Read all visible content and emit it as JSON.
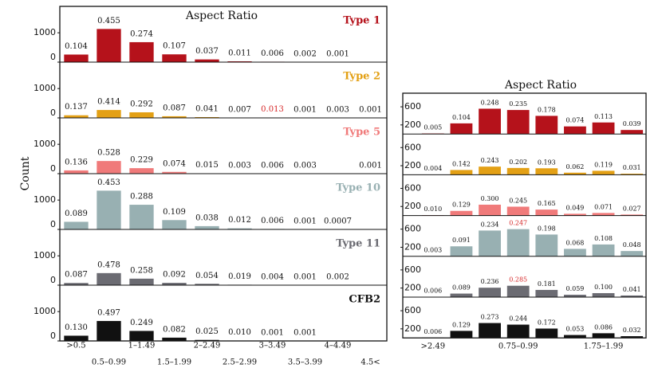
{
  "chart_data": [
    {
      "type": "bar",
      "title": "Aspect Ratio",
      "y_label": "Count",
      "categories": [
        ">0.5",
        "0.5–0.99",
        "1–1.49",
        "1.5–1.99",
        "2–2.49",
        "2.5–2.99",
        "3–3.49",
        "3.5–3.99",
        "4–4.49",
        "4.5<"
      ],
      "ylim": [
        0,
        1900
      ],
      "yticks": [
        0,
        1000
      ],
      "highlight_color": "#d62728",
      "series": [
        {
          "name": "Type 1",
          "color": "#b5121b",
          "values": [
            258,
            1130,
            680,
            265,
            92,
            27,
            15,
            5,
            2,
            0
          ],
          "labels": [
            "0.104",
            "0.455",
            "0.274",
            "0.107",
            "0.037",
            "0.011",
            "0.006",
            "0.002",
            "0.001",
            null
          ]
        },
        {
          "name": "Type 2",
          "color": "#e3a015",
          "values": [
            89,
            269,
            190,
            57,
            27,
            5,
            8,
            1,
            2,
            1
          ],
          "labels": [
            "0.137",
            "0.414",
            "0.292",
            "0.087",
            "0.041",
            "0.007",
            "0.013",
            "0.001",
            "0.003",
            "0.001"
          ],
          "highlight": 6
        },
        {
          "name": "Type 5",
          "color": "#f07a7a",
          "values": [
            111,
            430,
            187,
            60,
            12,
            2,
            5,
            2,
            0,
            1
          ],
          "labels": [
            "0.136",
            "0.528",
            "0.229",
            "0.074",
            "0.015",
            "0.003",
            "0.006",
            "0.003",
            null,
            "0.001"
          ]
        },
        {
          "name": "Type 10",
          "color": "#98b0b2",
          "values": [
            259,
            1320,
            840,
            318,
            111,
            35,
            17,
            3,
            2,
            0
          ],
          "labels": [
            "0.089",
            "0.453",
            "0.288",
            "0.109",
            "0.038",
            "0.012",
            "0.006",
            "0.001",
            "0.0007",
            null
          ]
        },
        {
          "name": "Type 11",
          "color": "#6b6b72",
          "values": [
            75,
            411,
            222,
            79,
            46,
            16,
            3,
            1,
            2,
            0
          ],
          "labels": [
            "0.087",
            "0.478",
            "0.258",
            "0.092",
            "0.054",
            "0.019",
            "0.004",
            "0.001",
            "0.002",
            null
          ]
        },
        {
          "name": "CFB2",
          "color": "#111111",
          "values": [
            178,
            680,
            341,
            112,
            34,
            14,
            1,
            1,
            0,
            0
          ],
          "labels": [
            "0.130",
            "0.497",
            "0.249",
            "0.082",
            "0.025",
            "0.010",
            "0.001",
            "0.001",
            null,
            null
          ]
        }
      ]
    },
    {
      "type": "bar",
      "title": "Aspect Ratio",
      "categories": [
        ">2.49",
        null,
        null,
        "0.75–0.99",
        null,
        null,
        "1.75–1.99",
        null
      ],
      "ylim": [
        0,
        900
      ],
      "yticks": [
        200,
        600
      ],
      "highlight_color": "#d62728",
      "series": [
        {
          "color": "#b5121b",
          "values": [
            11,
            234,
            558,
            529,
            400,
            167,
            254,
            88
          ],
          "labels": [
            "0.005",
            "0.104",
            "0.248",
            "0.235",
            "0.178",
            "0.074",
            "0.113",
            "0.039"
          ]
        },
        {
          "color": "#e3a015",
          "values": [
            3,
            105,
            180,
            150,
            143,
            46,
            88,
            23
          ],
          "labels": [
            "0.004",
            "0.142",
            "0.243",
            "0.202",
            "0.193",
            "0.062",
            "0.119",
            "0.031"
          ]
        },
        {
          "color": "#f07a7a",
          "values": [
            8,
            103,
            240,
            196,
            132,
            39,
            57,
            22
          ],
          "labels": [
            "0.010",
            "0.129",
            "0.300",
            "0.245",
            "0.165",
            "0.049",
            "0.071",
            "0.027"
          ]
        },
        {
          "color": "#98b0b2",
          "values": [
            7,
            221,
            569,
            600,
            481,
            165,
            262,
            117
          ],
          "labels": [
            "0.003",
            "0.091",
            "0.234",
            "0.247",
            "0.198",
            "0.068",
            "0.108",
            "0.048"
          ],
          "highlight": 3
        },
        {
          "color": "#6b6b72",
          "values": [
            5,
            78,
            208,
            251,
            159,
            52,
            88,
            36
          ],
          "labels": [
            "0.006",
            "0.089",
            "0.236",
            "0.285",
            "0.181",
            "0.059",
            "0.100",
            "0.041"
          ],
          "highlight": 3
        },
        {
          "color": "#111111",
          "values": [
            7,
            155,
            328,
            293,
            206,
            64,
            103,
            38
          ],
          "labels": [
            "0.006",
            "0.129",
            "0.273",
            "0.244",
            "0.172",
            "0.053",
            "0.086",
            "0.032"
          ]
        }
      ]
    }
  ]
}
